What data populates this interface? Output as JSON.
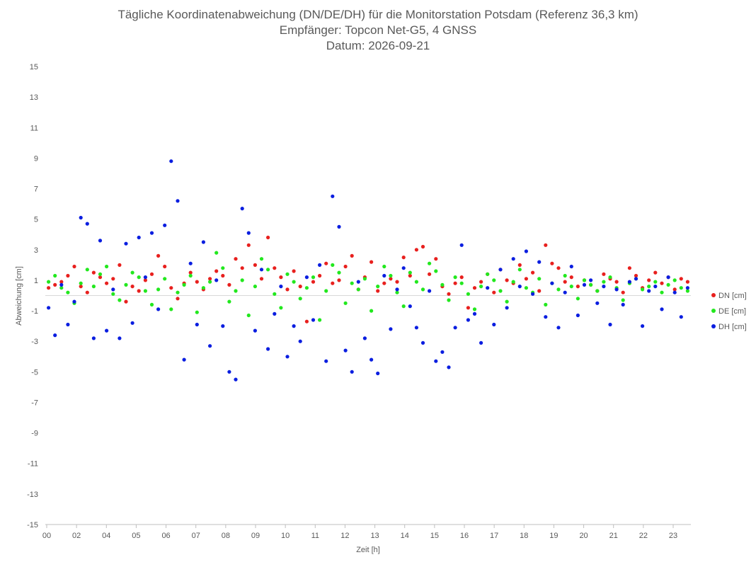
{
  "chart_data": {
    "type": "scatter",
    "title": "Tägliche Koordinatenabweichung (DN/DE/DH) für die Monitorstation Potsdam (Referenz 36,3 km)",
    "subtitle_lines": [
      "Empfänger: Topcon Net-G5, 4 GNSS",
      "Datum: 2026-09-21"
    ],
    "xlabel": "Zeit [h]",
    "ylabel": "Abweichung [cm]",
    "xlim": [
      0,
      23.65
    ],
    "ylim": [
      -15,
      15
    ],
    "x_ticks": [
      "00",
      "02",
      "04",
      "05",
      "06",
      "07",
      "08",
      "09",
      "10",
      "11",
      "12",
      "13",
      "14",
      "15",
      "16",
      "17",
      "18",
      "19",
      "20",
      "21",
      "22",
      "23"
    ],
    "y_ticks": [
      15,
      13,
      11,
      9,
      7,
      5,
      3,
      1,
      -1,
      -3,
      -5,
      -7,
      -9,
      -11,
      -13,
      -15
    ],
    "grid": "horizontal",
    "legend_position": "right",
    "series": [
      {
        "name": "DN [cm]",
        "color": "#e8201e",
        "base": 0.8,
        "noise": 0.55,
        "cycle": 0.4,
        "y": [
          0.5,
          0.7,
          0.9,
          1.3,
          1.9,
          0.6,
          0.2,
          1.5,
          1.2,
          0.8,
          1.1,
          2.0,
          -0.4,
          0.6,
          0.3,
          1.0,
          1.4,
          2.6,
          1.9,
          0.5,
          -0.2,
          0.8,
          1.5,
          0.9,
          0.4,
          1.1,
          1.6,
          1.3,
          0.7,
          2.4,
          1.8,
          3.3,
          2.0,
          1.1,
          3.8,
          1.8,
          1.2,
          0.4,
          1.6,
          0.6,
          -1.7,
          0.9,
          1.3,
          2.1,
          0.8,
          1.0,
          1.9,
          2.6,
          0.4,
          1.2,
          2.2,
          0.3,
          0.8,
          1.1,
          0.9,
          2.5,
          1.3,
          3.0,
          3.2,
          1.4,
          2.4,
          0.6,
          0.1,
          0.8,
          1.2,
          -0.8,
          0.5,
          0.9,
          1.4,
          0.2,
          1.7,
          1.0,
          0.8,
          2.0,
          1.1,
          1.5,
          0.3,
          3.3,
          2.1,
          1.8,
          0.9,
          1.2,
          0.6,
          1.0,
          0.7,
          0.3,
          1.4,
          1.1,
          0.9,
          0.2,
          1.8,
          1.3,
          0.5,
          1.0,
          1.5,
          0.8,
          1.2,
          0.4,
          1.1,
          0.9
        ]
      },
      {
        "name": "DE [cm]",
        "color": "#22e81e",
        "base": 0.4,
        "noise": 0.6,
        "cycle": 0.7,
        "y": [
          0.9,
          1.3,
          0.5,
          0.2,
          -0.5,
          0.8,
          1.7,
          0.6,
          1.4,
          1.9,
          0.1,
          -0.3,
          0.7,
          1.5,
          1.2,
          0.3,
          -0.6,
          0.4,
          1.1,
          -0.9,
          0.2,
          0.7,
          1.3,
          -1.1,
          0.5,
          0.9,
          2.8,
          1.8,
          -0.4,
          0.3,
          1.0,
          -1.3,
          0.6,
          2.4,
          1.7,
          0.1,
          -0.8,
          1.4,
          0.9,
          -0.2,
          0.5,
          1.2,
          -1.6,
          0.3,
          2.0,
          1.5,
          -0.5,
          0.8,
          0.4,
          1.1,
          -1.0,
          0.6,
          1.9,
          1.3,
          0.2,
          -0.7,
          1.5,
          0.9,
          0.4,
          2.1,
          1.6,
          0.7,
          -0.3,
          1.2,
          0.8,
          0.1,
          -0.9,
          0.6,
          1.4,
          1.0,
          0.3,
          -0.4,
          0.9,
          1.7,
          0.5,
          0.2,
          1.1,
          -0.6,
          0.8,
          0.4,
          1.3,
          0.6,
          -0.2,
          1.0,
          0.7,
          0.3,
          0.9,
          1.2,
          0.5,
          -0.3,
          0.8,
          1.1,
          0.4,
          0.6,
          0.9,
          0.2,
          0.7,
          1.0,
          0.5,
          0.3
        ]
      },
      {
        "name": "DH [cm]",
        "color": "#0a1ee0",
        "base": 0.0,
        "noise": 1.5,
        "cycle": 1.6,
        "y": [
          -0.8,
          -2.6,
          0.7,
          -1.9,
          -0.4,
          5.1,
          4.7,
          -2.8,
          3.6,
          -2.3,
          0.4,
          -2.8,
          3.4,
          -1.8,
          3.8,
          1.2,
          4.1,
          -0.9,
          4.6,
          8.8,
          6.2,
          -4.2,
          2.1,
          -1.9,
          3.5,
          -3.3,
          1.0,
          -2.0,
          -5.0,
          -5.5,
          5.7,
          4.1,
          -2.3,
          1.7,
          -3.5,
          -1.2,
          0.6,
          -4.0,
          -2.0,
          -3.0,
          1.2,
          -1.6,
          2.0,
          -4.3,
          6.5,
          4.5,
          -3.6,
          -5.0,
          0.9,
          -2.8,
          -4.2,
          -5.1,
          1.3,
          -2.2,
          0.4,
          1.8,
          -0.7,
          -2.1,
          -3.1,
          0.3,
          -4.3,
          -3.7,
          -4.7,
          -2.1,
          3.3,
          -1.6,
          -1.2,
          -3.1,
          0.5,
          -1.9,
          1.7,
          -0.8,
          2.4,
          0.6,
          2.9,
          0.1,
          2.2,
          -1.4,
          0.8,
          -2.1,
          0.2,
          1.9,
          -1.3,
          0.7,
          1.0,
          -0.5,
          0.6,
          -1.9,
          0.4,
          -0.6,
          0.9,
          1.1,
          -2.0,
          0.3,
          0.6,
          -0.9,
          1.2,
          0.2,
          -1.4,
          0.5
        ]
      }
    ]
  }
}
